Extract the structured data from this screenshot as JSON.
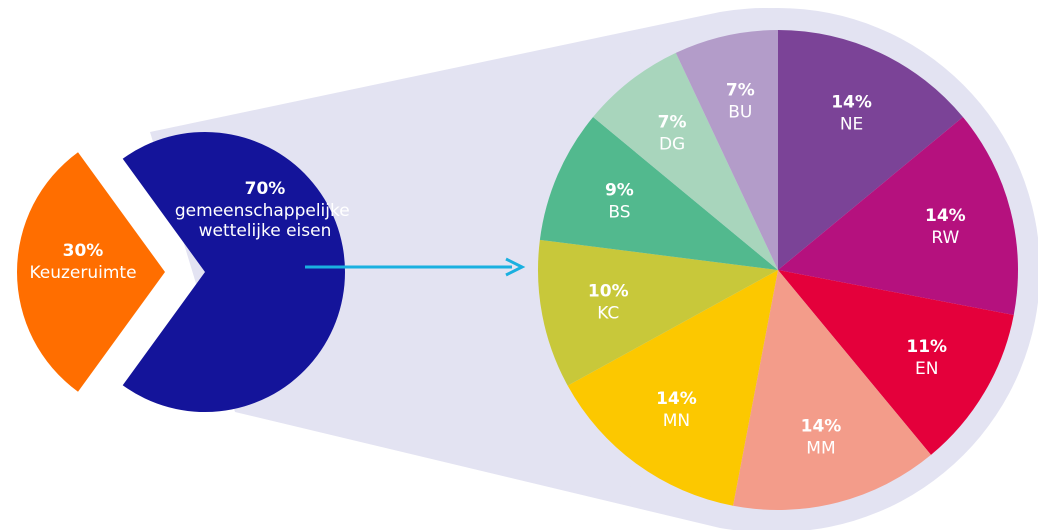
{
  "chart_data": [
    {
      "type": "pie",
      "categories": [
        "Keuzeruimte",
        "gemeenschappelijke wettelijke eisen"
      ],
      "values": [
        30,
        70
      ],
      "value_labels": [
        "30%",
        "70%"
      ],
      "colors": [
        "#ff6e00",
        "#14149a"
      ]
    },
    {
      "type": "pie",
      "categories": [
        "NE",
        "RW",
        "EN",
        "MM",
        "MN",
        "KC",
        "BS",
        "DG",
        "BU"
      ],
      "values": [
        14,
        14,
        11,
        14,
        14,
        10,
        9,
        7,
        7
      ],
      "value_labels": [
        "14%",
        "14%",
        "11%",
        "14%",
        "14%",
        "10%",
        "9%",
        "7%",
        "7%"
      ],
      "colors": [
        "#7b4397",
        "#b5117e",
        "#e4003b",
        "#f39c8a",
        "#fcc800",
        "#c8c83a",
        "#52b98e",
        "#a8d5bc",
        "#b39cc9"
      ]
    }
  ]
}
